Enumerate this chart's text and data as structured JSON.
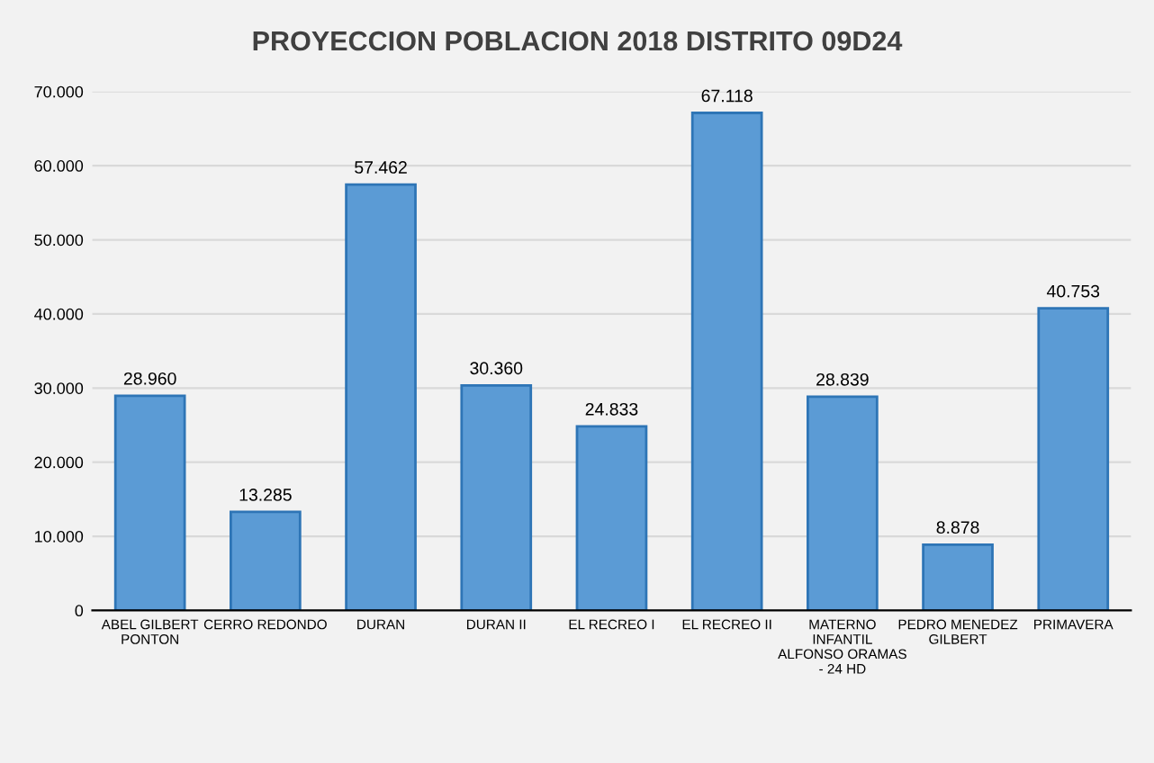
{
  "chart_data": {
    "type": "bar",
    "title": "PROYECCION POBLACION 2018 DISTRITO 09D24",
    "categories": [
      "ABEL GILBERT PONTON",
      "CERRO REDONDO",
      "DURAN",
      "DURAN II",
      "EL RECREO I",
      "EL RECREO II",
      "MATERNO INFANTIL ALFONSO ORAMAS - 24 HD",
      "PEDRO MENEDEZ GILBERT",
      "PRIMAVERA"
    ],
    "values": [
      28960,
      13285,
      57462,
      30360,
      24833,
      67118,
      28839,
      8878,
      40753
    ],
    "value_labels": [
      "28.960",
      "13.285",
      "57.462",
      "30.360",
      "24.833",
      "67.118",
      "28.839",
      "8.878",
      "40.753"
    ],
    "color": "#5b9bd5",
    "ylim": [
      0,
      70000
    ],
    "yticks": [
      0,
      {
        "value": 10000,
        "label": "10.000"
      },
      {
        "value": 20000,
        "label": "20.000"
      },
      {
        "value": 30000,
        "label": "30.000"
      },
      {
        "value": 40000,
        "label": "40.000"
      },
      {
        "value": 50000,
        "label": "50.000"
      },
      {
        "value": 60000,
        "label": "60.000"
      },
      {
        "value": 70000,
        "label": "70.000"
      }
    ],
    "grid": "y"
  }
}
